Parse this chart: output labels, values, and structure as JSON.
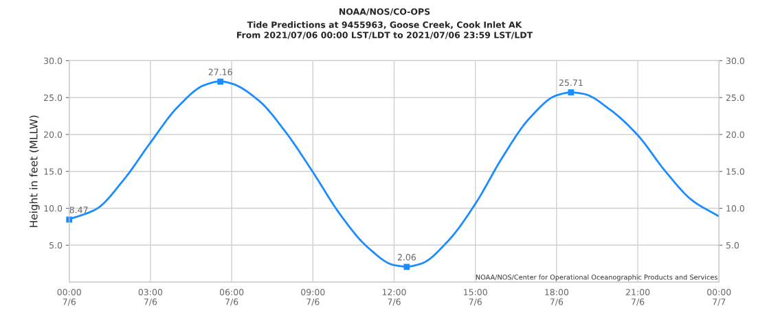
{
  "chart_data": {
    "type": "line",
    "title": "NOAA/NOS/CO-OPS",
    "subtitle": "Tide Predictions at 9455963, Goose Creek, Cook Inlet AK\nFrom 2021/07/06 00:00 LST/LDT to 2021/07/06 23:59 LST/LDT",
    "ylabel": "Height in feet (MLLW)",
    "annotations": [
      "NOAA/NOS/Center for Operational Oceanographic Products and Services"
    ],
    "series": [
      {
        "color": "#1a8cff",
        "marker": "none",
        "line_style": "solid",
        "x": [
          "2021-07-06T00:00",
          "2021-07-06T01:00",
          "2021-07-06T02:00",
          "2021-07-06T03:00",
          "2021-07-06T04:00",
          "2021-07-06T05:00",
          "2021-07-06T05:35",
          "2021-07-06T06:00",
          "2021-07-06T07:00",
          "2021-07-06T08:00",
          "2021-07-06T09:00",
          "2021-07-06T10:00",
          "2021-07-06T11:00",
          "2021-07-06T12:00",
          "2021-07-06T12:28",
          "2021-07-06T13:00",
          "2021-07-06T14:00",
          "2021-07-06T15:00",
          "2021-07-06T16:00",
          "2021-07-06T17:00",
          "2021-07-06T18:00",
          "2021-07-06T18:32",
          "2021-07-06T19:00",
          "2021-07-06T20:00",
          "2021-07-06T21:00",
          "2021-07-06T22:00",
          "2021-07-06T23:00",
          "2021-07-07T00:00"
        ],
        "values": [
          8.5,
          9.9,
          13.8,
          18.9,
          23.7,
          26.7,
          27.2,
          26.9,
          24.6,
          20.3,
          14.9,
          9.2,
          4.8,
          2.3,
          2.1,
          2.5,
          5.6,
          10.6,
          16.9,
          22.2,
          25.3,
          25.7,
          25.5,
          23.3,
          19.9,
          15.1,
          11.1,
          8.9
        ]
      },
      {
        "type": "scatter",
        "color": "#1a8cff",
        "marker": "square",
        "x": [
          "2021-07-06T00:00",
          "2021-07-06T05:35",
          "2021-07-06T12:28",
          "2021-07-06T18:32"
        ],
        "values": [
          8.47,
          27.16,
          2.06,
          25.71
        ],
        "value_labels": [
          "8.47",
          "27.16",
          "2.06",
          "25.71"
        ]
      }
    ],
    "xlim": [
      "2021-07-06T00:00",
      "2021-07-07T00:00"
    ],
    "xticks": [
      {
        "value": "2021-07-06T00:00",
        "label": "00:00\n7/6"
      },
      {
        "value": "2021-07-06T03:00",
        "label": "03:00\n7/6"
      },
      {
        "value": "2021-07-06T06:00",
        "label": "06:00\n7/6"
      },
      {
        "value": "2021-07-06T09:00",
        "label": "09:00\n7/6"
      },
      {
        "value": "2021-07-06T12:00",
        "label": "12:00\n7/6"
      },
      {
        "value": "2021-07-06T15:00",
        "label": "15:00\n7/6"
      },
      {
        "value": "2021-07-06T18:00",
        "label": "18:00\n7/6"
      },
      {
        "value": "2021-07-06T21:00",
        "label": "21:00\n7/6"
      },
      {
        "value": "2021-07-07T00:00",
        "label": "00:00\n7/7"
      }
    ],
    "ylim": [
      0,
      30
    ],
    "yticks": [
      {
        "value": 5,
        "label": "5.0"
      },
      {
        "value": 10,
        "label": "10.0"
      },
      {
        "value": 15,
        "label": "15.0"
      },
      {
        "value": 20,
        "label": "20.0"
      },
      {
        "value": 25,
        "label": "25.0"
      },
      {
        "value": 30,
        "label": "30.0"
      }
    ],
    "y2lim": [
      0,
      30
    ],
    "y2ticks": [
      {
        "value": 5,
        "label": "5.0"
      },
      {
        "value": 10,
        "label": "10.0"
      },
      {
        "value": 15,
        "label": "15.0"
      },
      {
        "value": 20,
        "label": "20.0"
      },
      {
        "value": 25,
        "label": "25.0"
      },
      {
        "value": 30,
        "label": "30.0"
      }
    ],
    "grid": true,
    "legend": false
  }
}
